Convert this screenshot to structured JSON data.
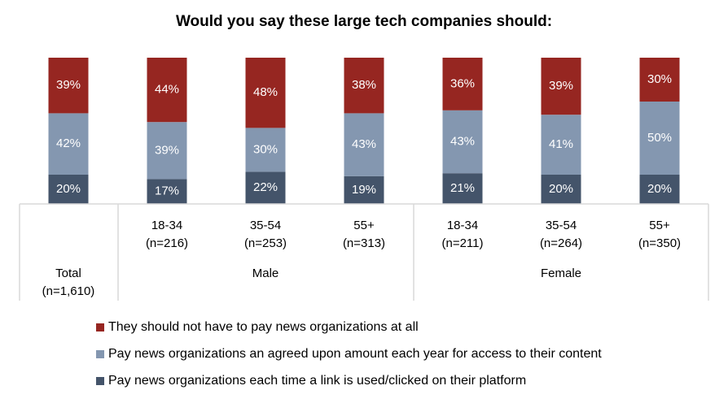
{
  "chart_data": {
    "type": "bar",
    "stacked": true,
    "title": "Would you say these large tech companies should:",
    "categories": [
      {
        "label": "18-34",
        "n": "(n=216)",
        "group": "Male"
      },
      {
        "label": "35-54",
        "n": "(n=253)",
        "group": "Male"
      },
      {
        "label": "55+",
        "n": "(n=313)",
        "group": "Male"
      },
      {
        "label": "18-34",
        "n": "(n=211)",
        "group": "Female"
      },
      {
        "label": "35-54",
        "n": "(n=264)",
        "group": "Female"
      },
      {
        "label": "55+",
        "n": "(n=350)",
        "group": "Female"
      }
    ],
    "total": {
      "label": "Total",
      "n": "(n=1,610)"
    },
    "groups": [
      "Male",
      "Female"
    ],
    "series": [
      {
        "name": "Pay news organizations each time a link is used/clicked on their platform",
        "color": "#44546A",
        "values": [
          20,
          17,
          22,
          19,
          21,
          20,
          20
        ]
      },
      {
        "name": "Pay news organizations an agreed upon amount each year for access to their content",
        "color": "#8497B0",
        "values": [
          42,
          39,
          30,
          43,
          43,
          41,
          50
        ]
      },
      {
        "name": "They should not have to pay news organizations at all",
        "color": "#962621",
        "values": [
          39,
          44,
          48,
          38,
          36,
          39,
          30
        ]
      }
    ],
    "bar_order": [
      "Total",
      "Male 18-34",
      "Male 35-54",
      "Male 55+",
      "Female 18-34",
      "Female 35-54",
      "Female 55+"
    ],
    "value_suffix": "%",
    "legend_position": "bottom-left",
    "legend_order": [
      2,
      1,
      0
    ],
    "ylim": [
      0,
      100
    ],
    "grid": false
  }
}
